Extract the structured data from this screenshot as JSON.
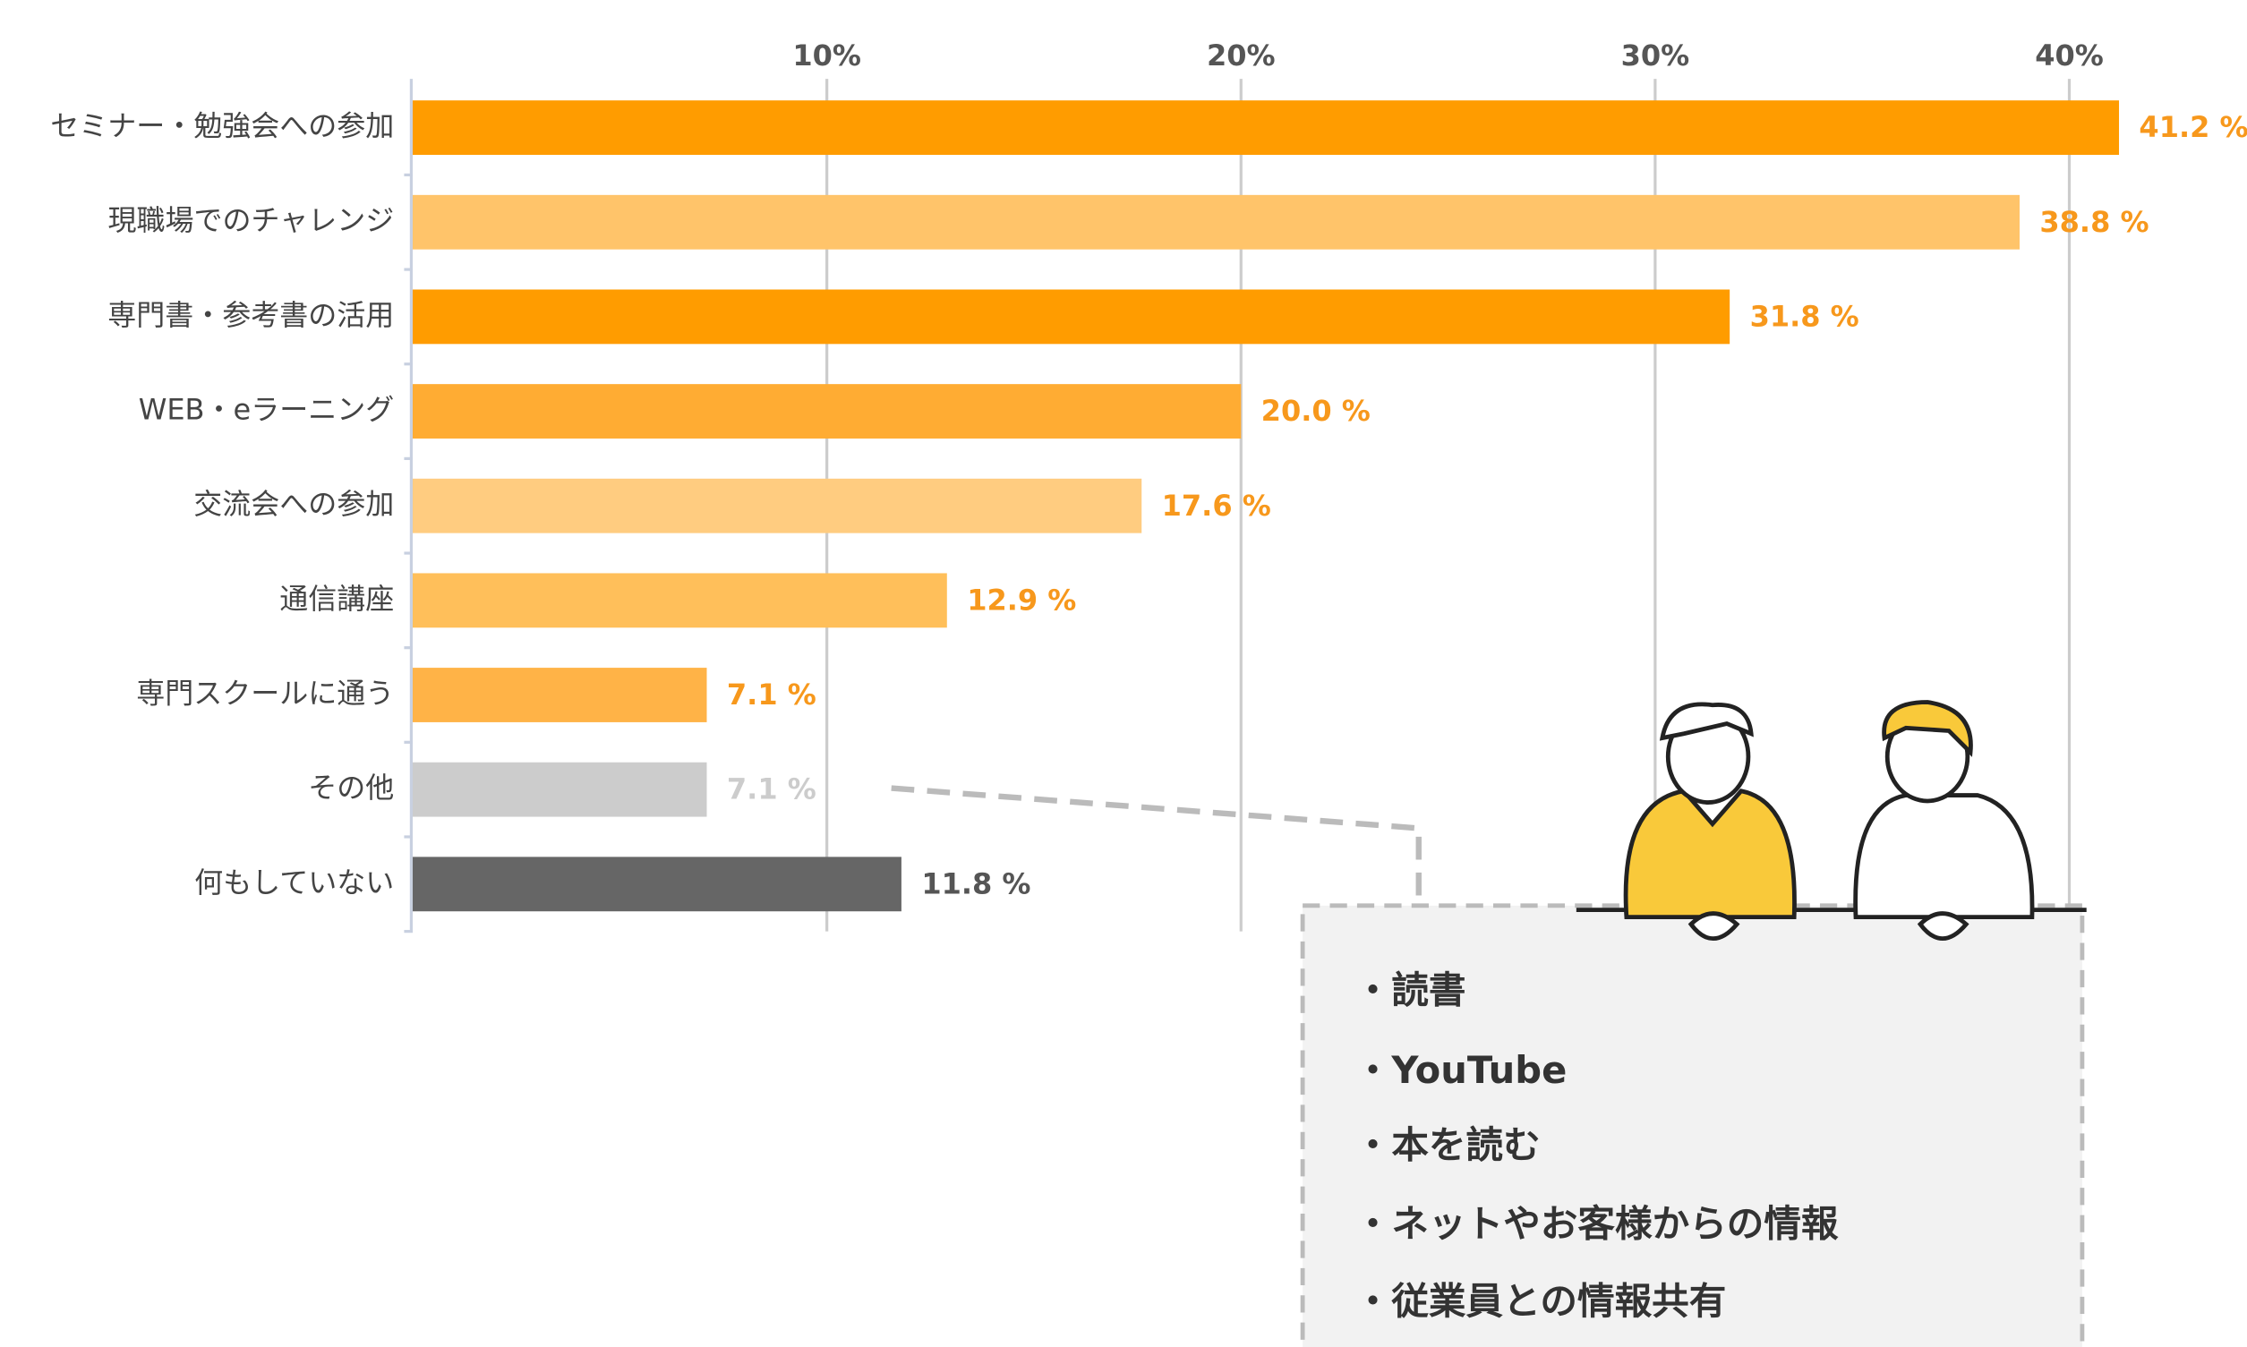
{
  "chart_data": {
    "type": "bar",
    "orientation": "horizontal",
    "categories": [
      "セミナー・勉強会への参加",
      "現職場でのチャレンジ",
      "専門書・参考書の活用",
      "WEB・eラーニング",
      "交流会への参加",
      "通信講座",
      "専門スクールに通う",
      "その他",
      "何もしていない"
    ],
    "values": [
      41.2,
      38.8,
      31.8,
      20.0,
      17.6,
      12.9,
      7.1,
      7.1,
      11.8
    ],
    "value_labels": [
      "41.2 %",
      "38.8 %",
      "31.8 %",
      "20.0 %",
      "17.6 %",
      "12.9 %",
      "7.1 %",
      "7.1 %",
      "11.8 %"
    ],
    "colors": [
      "#ff9c00",
      "#ffc46a",
      "#ff9c00",
      "#ffac33",
      "#ffcc80",
      "#ffbf5a",
      "#ffb347",
      "#cccccc",
      "#666666"
    ],
    "label_colors": [
      "#f7981c",
      "#f7981c",
      "#f7981c",
      "#f7981c",
      "#f7981c",
      "#f7981c",
      "#f7981c",
      "#cccccc",
      "#555555"
    ],
    "xlim": [
      0,
      43
    ],
    "xticks": [
      {
        "value": 10,
        "label": "10%"
      },
      {
        "value": 20,
        "label": "20%"
      },
      {
        "value": 30,
        "label": "30%"
      },
      {
        "value": 40,
        "label": "40%"
      }
    ],
    "grid": true
  },
  "callout": {
    "items": [
      "・読書",
      "・YouTube",
      "・本を読む",
      "・ネットやお客様からの情報",
      "・従業員との情報共有"
    ]
  }
}
